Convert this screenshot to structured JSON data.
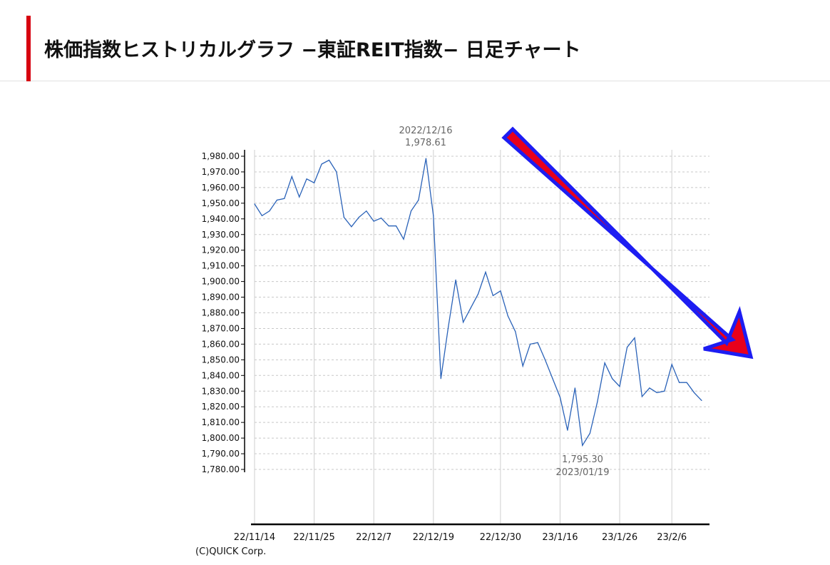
{
  "header": {
    "title": "株価指数ヒストリカルグラフ −東証REIT指数− 日足チャート"
  },
  "copyright": "(C)QUICK Corp.",
  "colors": {
    "accent": "#d7000f",
    "line": "#2a62b8",
    "arrow_fill": "#e8001c",
    "arrow_stroke": "#1d1df2"
  },
  "chart_data": {
    "type": "line",
    "title": "",
    "xlabel": "",
    "ylabel": "",
    "ylim": [
      1780,
      1980
    ],
    "y_ticks": [
      "1,980.00",
      "1,970.00",
      "1,960.00",
      "1,950.00",
      "1,940.00",
      "1,930.00",
      "1,920.00",
      "1,910.00",
      "1,900.00",
      "1,890.00",
      "1,880.00",
      "1,870.00",
      "1,860.00",
      "1,850.00",
      "1,840.00",
      "1,830.00",
      "1,820.00",
      "1,810.00",
      "1,800.00",
      "1,790.00",
      "1,780.00"
    ],
    "x_ticks": [
      {
        "label": "22/11/14",
        "index": 0
      },
      {
        "label": "22/11/25",
        "index": 8
      },
      {
        "label": "22/12/7",
        "index": 16
      },
      {
        "label": "22/12/19",
        "index": 24
      },
      {
        "label": "22/12/30",
        "index": 33
      },
      {
        "label": "23/1/16",
        "index": 41
      },
      {
        "label": "23/1/26",
        "index": 49
      },
      {
        "label": "23/2/6",
        "index": 56
      }
    ],
    "grid": true,
    "series": [
      {
        "values": [
          1949.5,
          1942,
          1945,
          1952,
          1953,
          1967,
          1954,
          1965.5,
          1963,
          1975,
          1977.5,
          1970,
          1941,
          1935,
          1941,
          1945,
          1938.5,
          1940.5,
          1935.5,
          1935.5,
          1927,
          1945,
          1952,
          1978.61,
          1942,
          1838,
          1871,
          1901,
          1874,
          1883,
          1892,
          1906,
          1891,
          1894,
          1878,
          1868,
          1846,
          1860,
          1861,
          1850,
          1838,
          1826,
          1805,
          1832,
          1795.3,
          1803,
          1823,
          1848,
          1838,
          1833,
          1858,
          1864,
          1826.5,
          1832,
          1829,
          1830,
          1847,
          1835.5,
          1835.5,
          1829,
          1824
        ]
      }
    ],
    "annotations": [
      {
        "text": "2022/12/16",
        "index": 23
      },
      {
        "text": "1,978.61",
        "index": 23
      },
      {
        "text": "1,795.30",
        "index": 44
      },
      {
        "text": "2023/01/19",
        "index": 44
      }
    ]
  }
}
